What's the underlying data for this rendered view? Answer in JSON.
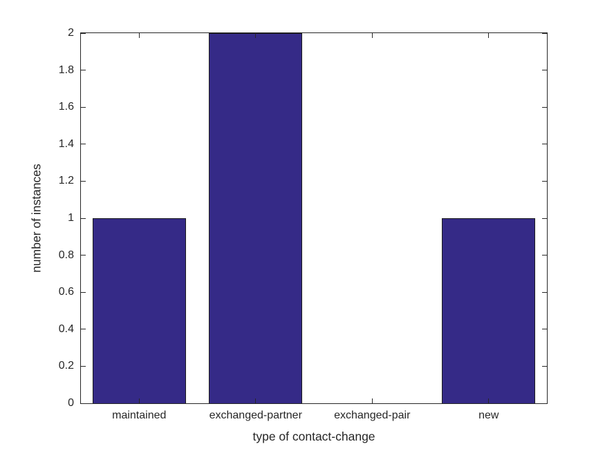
{
  "chart_data": {
    "type": "bar",
    "title": "",
    "xlabel": "type of contact-change",
    "ylabel": "number of instances",
    "categories": [
      "maintained",
      "exchanged-partner",
      "exchanged-pair",
      "new"
    ],
    "values": [
      1,
      2,
      0,
      1
    ],
    "ylim": [
      0,
      2
    ],
    "yticks": [
      0,
      0.2,
      0.4,
      0.6,
      0.8,
      1,
      1.2,
      1.4,
      1.6,
      1.8,
      2
    ],
    "ytick_labels": [
      "0",
      "0.2",
      "0.4",
      "0.6",
      "0.8",
      "1",
      "1.2",
      "1.4",
      "1.6",
      "1.8",
      "2"
    ],
    "bar_width_fraction": 0.8,
    "bar_color": "#352A87",
    "bar_edge_color": "#1a1a1a",
    "axis_color": "#262626",
    "text_color": "#262626",
    "background": "#FFFFFF",
    "grid": false,
    "legend": null,
    "tick_direction": "in",
    "box": true
  }
}
